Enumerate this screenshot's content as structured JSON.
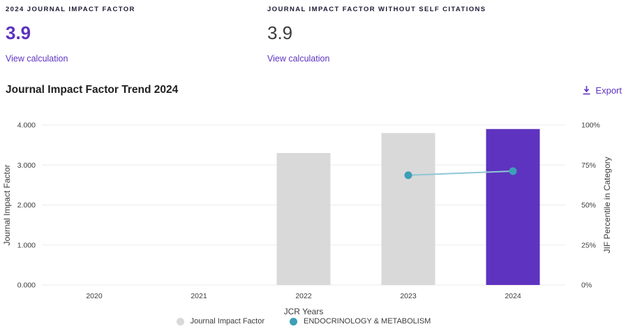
{
  "metrics": {
    "jif": {
      "label": "2024 JOURNAL IMPACT FACTOR",
      "value": "3.9",
      "link": "View calculation"
    },
    "jif_no_self": {
      "label": "JOURNAL IMPACT FACTOR WITHOUT SELF CITATIONS",
      "value": "3.9",
      "link": "View calculation"
    }
  },
  "trend_section": {
    "title": "Journal Impact Factor Trend 2024",
    "export_label": "Export"
  },
  "chart_data": {
    "type": "bar",
    "categories": [
      "2020",
      "2021",
      "2022",
      "2023",
      "2024"
    ],
    "series": [
      {
        "name": "Journal Impact Factor",
        "type": "bar",
        "axis": "left",
        "values": [
          null,
          null,
          3.3,
          3.8,
          3.9
        ],
        "bar_colors": [
          "#d9d9d9",
          "#d9d9d9",
          "#d9d9d9",
          "#d9d9d9",
          "#5e33bf"
        ]
      },
      {
        "name": "ENDOCRINOLOGY & METABOLISM",
        "type": "line",
        "axis": "right",
        "values": [
          null,
          null,
          null,
          68.6,
          71.2
        ]
      }
    ],
    "title": "Journal Impact Factor Trend 2024",
    "xlabel": "JCR Years",
    "ylabel_left": "Journal Impact Factor",
    "ylabel_right": "JIF Percentile in Category",
    "yticks_left": [
      "0.000",
      "1.000",
      "2.000",
      "3.000",
      "4.000"
    ],
    "yticks_right": [
      "0%",
      "25%",
      "50%",
      "75%",
      "100%"
    ],
    "ylim_left": [
      0,
      4
    ],
    "ylim_right": [
      0,
      100
    ],
    "grid": "horizontal",
    "legend_position": "bottom",
    "legend": [
      {
        "label": "Journal Impact Factor",
        "color": "#d9d9d9"
      },
      {
        "label": "ENDOCRINOLOGY & METABOLISM",
        "color": "#3d9fb8"
      }
    ]
  },
  "colors": {
    "accent_purple": "#5e33bf",
    "bar_gray": "#d9d9d9",
    "bar_highlight": "#5e33bf",
    "line_teal": "#8ec7d4",
    "dot_teal": "#3d9fb8",
    "gridline": "#ebebeb",
    "tick_text": "#3c3c3c",
    "axis_label_text": "#3c3c3c"
  }
}
